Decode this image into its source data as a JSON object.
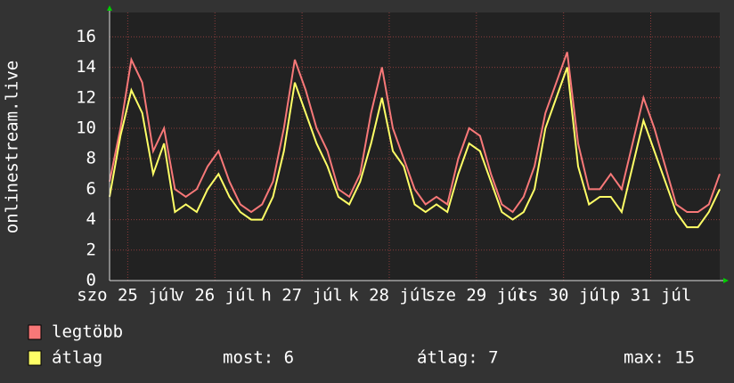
{
  "chart_data": {
    "type": "line",
    "ylabel": "onlinestream.live",
    "xlim": [
      0,
      168
    ],
    "xticks": [
      {
        "value": 5,
        "label": "szo 25 júl"
      },
      {
        "value": 29,
        "label": "v 26 júl"
      },
      {
        "value": 53,
        "label": "h 27 júl"
      },
      {
        "value": 77,
        "label": "k 28 júl"
      },
      {
        "value": 101,
        "label": "sze 29 júl"
      },
      {
        "value": 125,
        "label": "cs 30 júl"
      },
      {
        "value": 149,
        "label": "p 31 júl"
      }
    ],
    "ylim": [
      0,
      17.6
    ],
    "yticks": [
      0,
      2,
      4,
      6,
      8,
      10,
      12,
      14,
      16
    ],
    "grid": true,
    "x": [
      0,
      3,
      6,
      9,
      12,
      15,
      18,
      21,
      24,
      27,
      30,
      33,
      36,
      39,
      42,
      45,
      48,
      51,
      54,
      57,
      60,
      63,
      66,
      69,
      72,
      75,
      78,
      81,
      84,
      87,
      90,
      93,
      96,
      99,
      102,
      105,
      108,
      111,
      114,
      117,
      120,
      123,
      126,
      129,
      132,
      135,
      138,
      141,
      144,
      147,
      150,
      153,
      156,
      159,
      162,
      165,
      168
    ],
    "series": [
      {
        "name": "legtöbb",
        "color": "#f87878",
        "values": [
          6.5,
          10,
          14.5,
          13,
          8.5,
          10,
          6,
          5.5,
          6,
          7.5,
          8.5,
          6.5,
          5,
          4.5,
          5,
          6.5,
          10,
          14.5,
          12.5,
          10,
          8.5,
          6,
          5.5,
          7,
          11,
          14,
          10,
          8,
          6,
          5,
          5.5,
          5,
          8,
          10,
          9.5,
          7,
          5,
          4.5,
          5.5,
          7.5,
          11,
          13,
          15,
          9,
          6,
          6,
          7,
          6,
          9,
          12,
          10,
          7.5,
          5,
          4.5,
          4.5,
          5,
          7
        ]
      },
      {
        "name": "átlag",
        "color": "#ffff66",
        "values": [
          5.5,
          9.5,
          12.5,
          11,
          7,
          9,
          4.5,
          5,
          4.5,
          6,
          7,
          5.5,
          4.5,
          4,
          4,
          5.5,
          8.5,
          13,
          11,
          9,
          7.5,
          5.5,
          5,
          6.5,
          9,
          12,
          8.5,
          7.5,
          5,
          4.5,
          5,
          4.5,
          7,
          9,
          8.5,
          6.5,
          4.5,
          4,
          4.5,
          6,
          10,
          12,
          14,
          7.5,
          5,
          5.5,
          5.5,
          4.5,
          7.5,
          10.5,
          8.5,
          6.5,
          4.5,
          3.5,
          3.5,
          4.5,
          6
        ]
      }
    ],
    "stats": [
      "most: 6",
      "átlag: 7",
      "max: 15"
    ]
  }
}
